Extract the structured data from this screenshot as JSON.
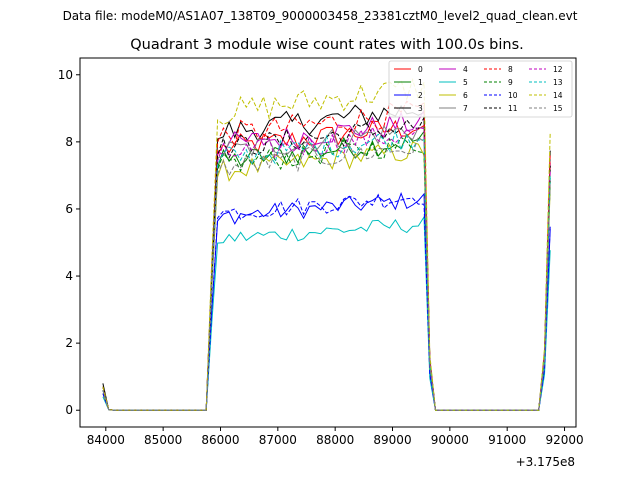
{
  "header": {
    "datafile": "Data file: modeM0/AS1A07_138T09_9000003458_23381cztM0_level2_quad_clean.evt"
  },
  "chart_data": {
    "type": "line",
    "title": "Quadrant 3 module wise count rates with 100.0s bins.",
    "xlabel": "",
    "ylabel": "",
    "x_offset_label": "+3.175e8",
    "xlim": [
      83550,
      92200
    ],
    "ylim": [
      -0.5,
      10.5
    ],
    "xticks": [
      84000,
      85000,
      86000,
      87000,
      88000,
      89000,
      90000,
      91000,
      92000
    ],
    "xtick_labels": [
      "84000",
      "85000",
      "86000",
      "87000",
      "88000",
      "89000",
      "90000",
      "91000",
      "92000"
    ],
    "yticks": [
      0,
      2,
      4,
      6,
      8,
      10
    ],
    "ytick_labels": [
      "0",
      "2",
      "4",
      "6",
      "8",
      "10"
    ],
    "grid": false,
    "legend_position": "top-right",
    "legend_columns": 4,
    "segments": {
      "pre": {
        "start": 83950,
        "end": 85750
      },
      "gti1": {
        "start": 85850,
        "end": 89650
      },
      "gap": {
        "start": 89750,
        "end": 91550
      },
      "gti2": {
        "start": 91650,
        "end": 91750
      }
    },
    "series": [
      {
        "name": "0",
        "color": "#ff0000",
        "dash": "solid",
        "level": 8.1,
        "start": 0.7
      },
      {
        "name": "1",
        "color": "#008000",
        "dash": "solid",
        "level": 7.7,
        "start": 0.6
      },
      {
        "name": "2",
        "color": "#0000ff",
        "dash": "solid",
        "level": 6.0,
        "start": 0.5
      },
      {
        "name": "3",
        "color": "#000000",
        "dash": "solid",
        "level": 8.6,
        "start": 0.8
      },
      {
        "name": "4",
        "color": "#bf00bf",
        "dash": "solid",
        "level": 8.2,
        "start": 0.6
      },
      {
        "name": "5",
        "color": "#00bfbf",
        "dash": "solid",
        "level": 5.3,
        "start": 0.4
      },
      {
        "name": "6",
        "color": "#bfbf00",
        "dash": "solid",
        "level": 7.4,
        "start": 0.5
      },
      {
        "name": "7",
        "color": "#808080",
        "dash": "solid",
        "level": 8.0,
        "start": 0.6
      },
      {
        "name": "8",
        "color": "#ff0000",
        "dash": "dashed",
        "level": 8.5,
        "start": 0.7
      },
      {
        "name": "9",
        "color": "#008000",
        "dash": "dashed",
        "level": 7.6,
        "start": 0.6
      },
      {
        "name": "10",
        "color": "#0000ff",
        "dash": "dashed",
        "level": 6.1,
        "start": 0.5
      },
      {
        "name": "11",
        "color": "#000000",
        "dash": "dashed",
        "level": 8.1,
        "start": 0.7
      },
      {
        "name": "12",
        "color": "#bf00bf",
        "dash": "dashed",
        "level": 7.9,
        "start": 0.6
      },
      {
        "name": "13",
        "color": "#00bfbf",
        "dash": "dashed",
        "level": 7.8,
        "start": 0.6
      },
      {
        "name": "14",
        "color": "#bfbf00",
        "dash": "dashed",
        "level": 9.2,
        "start": 0.7
      },
      {
        "name": "15",
        "color": "#808080",
        "dash": "dashed",
        "level": 7.5,
        "start": 0.6
      }
    ]
  }
}
